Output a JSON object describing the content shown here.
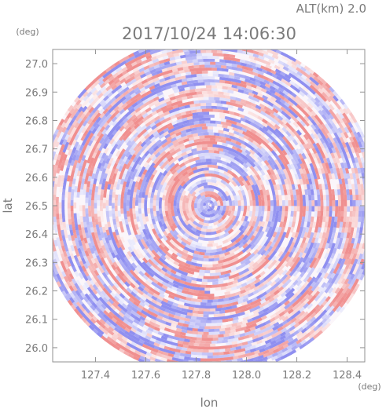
{
  "header": {
    "alt_label": "ALT(km)  2.0",
    "timestamp": "2017/10/24 14:06:30"
  },
  "chart_data": {
    "type": "heatmap",
    "title": "2017/10/24 14:06:30",
    "subtitle": "ALT(km)  2.0",
    "xlabel": "lon",
    "ylabel": "lat",
    "x_unit": "(deg)",
    "y_unit": "(deg)",
    "xlim": [
      127.23,
      128.47
    ],
    "ylim": [
      25.95,
      27.05
    ],
    "x_ticks": [
      127.4,
      127.6,
      127.8,
      128.0,
      128.2,
      128.4
    ],
    "x_tick_labels": [
      "127.4",
      "127.6",
      "127.8",
      "128.0",
      "128.2",
      "128.4"
    ],
    "y_ticks": [
      26.0,
      26.1,
      26.2,
      26.3,
      26.4,
      26.5,
      26.6,
      26.7,
      26.8,
      26.9,
      27.0
    ],
    "y_tick_labels": [
      "26.0",
      "26.1",
      "26.2",
      "26.3",
      "26.4",
      "26.5",
      "26.6",
      "26.7",
      "26.8",
      "26.9",
      "27.0"
    ],
    "center": {
      "lon": 127.85,
      "lat": 26.5
    },
    "radius_lat_deg": 0.6,
    "colormap": {
      "negative": "#8f8ff0",
      "zero": "#ffffff",
      "positive": "#f08f8f"
    },
    "grid": false,
    "legend": "none"
  }
}
